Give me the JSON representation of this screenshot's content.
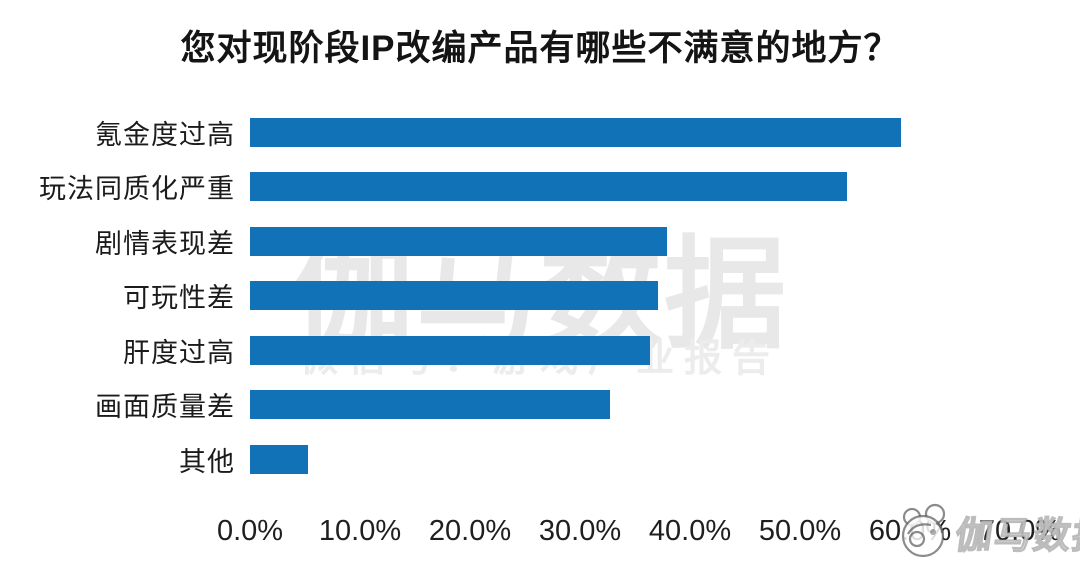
{
  "title": "您对现阶段IP改编产品有哪些不满意的地方？",
  "watermark": {
    "center_brand": "伽马数据",
    "center_subtitle": "微信号：游戏产业报告",
    "corner_brand": "伽马数据"
  },
  "colors": {
    "bar": "#1172b8",
    "title_text": "#141414",
    "label_text": "#1b1b1b",
    "watermark_big": "#e8e8e8",
    "watermark_sub": "#ececec",
    "background": "#ffffff"
  },
  "chart_data": {
    "type": "bar",
    "orientation": "horizontal",
    "title": "您对现阶段IP改编产品有哪些不满意的地方？",
    "categories": [
      "氪金度过高",
      "玩法同质化严重",
      "剧情表现差",
      "可玩性差",
      "肝度过高",
      "画面质量差",
      "其他"
    ],
    "values": [
      59.2,
      54.3,
      37.9,
      37.1,
      36.4,
      32.7,
      5.3
    ],
    "value_unit": "%",
    "x_tick_labels": [
      "0.0%",
      "10.0%",
      "20.0%",
      "30.0%",
      "40.0%",
      "50.0%",
      "60.0%",
      "70.0%"
    ],
    "xlim": [
      0,
      70
    ],
    "grid": false,
    "legend": null,
    "xlabel": "",
    "ylabel": ""
  }
}
